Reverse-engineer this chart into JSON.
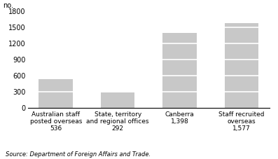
{
  "categories": [
    "Australian staff\nposted overseas\n536",
    "State, territory\nand regional offices\n292",
    "Canberra\n1,398",
    "Staff recruited\noverseas\n1,577"
  ],
  "values": [
    536,
    292,
    1398,
    1577
  ],
  "bar_color": "#c8c8c8",
  "bar_edge_color": "#c8c8c8",
  "stripe_color": "#ffffff",
  "ylim": [
    0,
    1800
  ],
  "yticks": [
    0,
    300,
    600,
    900,
    1200,
    1500,
    1800
  ],
  "ylabel": "no.",
  "source": "Source: Department of Foreign Affairs and Trade.",
  "background_color": "#ffffff",
  "stripe_interval": 300,
  "bar_width": 0.55
}
